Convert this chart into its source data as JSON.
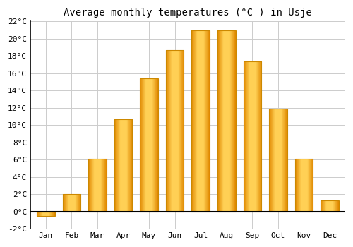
{
  "title": "Average monthly temperatures (°C ) in Usje",
  "months": [
    "Jan",
    "Feb",
    "Mar",
    "Apr",
    "May",
    "Jun",
    "Jul",
    "Aug",
    "Sep",
    "Oct",
    "Nov",
    "Dec"
  ],
  "values": [
    -0.5,
    2.0,
    6.1,
    10.7,
    15.4,
    18.7,
    21.0,
    21.0,
    17.4,
    11.9,
    6.1,
    1.3
  ],
  "bar_color_light": "#FFD966",
  "bar_color_mid": "#FFA500",
  "bar_color_dark": "#E08000",
  "background_color": "#FFFFFF",
  "grid_color": "#CCCCCC",
  "ylim": [
    -2,
    22
  ],
  "yticks": [
    -2,
    0,
    2,
    4,
    6,
    8,
    10,
    12,
    14,
    16,
    18,
    20,
    22
  ],
  "ytick_labels": [
    "-2°C",
    "0°C",
    "2°C",
    "4°C",
    "6°C",
    "8°C",
    "10°C",
    "12°C",
    "14°C",
    "16°C",
    "18°C",
    "20°C",
    "22°C"
  ],
  "title_fontsize": 10,
  "tick_fontsize": 8,
  "font_family": "monospace",
  "bar_width": 0.7
}
